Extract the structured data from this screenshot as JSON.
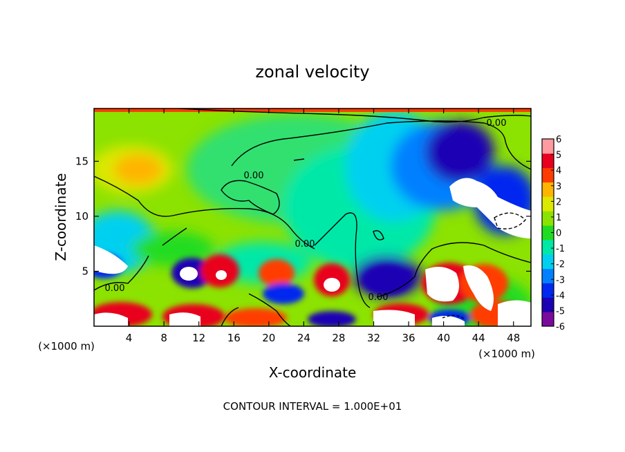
{
  "chart_data": {
    "type": "heatmap",
    "title": "zonal velocity",
    "xlabel": "X-coordinate",
    "ylabel": "Z-coordinate",
    "x_unit_left": "(×1000 m)",
    "x_unit_right": "(×1000 m)",
    "xlim": [
      0,
      50
    ],
    "ylim": [
      0,
      19.8
    ],
    "x_ticks": [
      "4",
      "8",
      "12",
      "16",
      "20",
      "24",
      "28",
      "32",
      "36",
      "40",
      "44",
      "48"
    ],
    "y_ticks": [
      "5",
      "10",
      "15"
    ],
    "colorbar": {
      "levels": [
        "-6",
        "-5",
        "-4",
        "-3",
        "-2",
        "-1",
        "0",
        "1",
        "2",
        "3",
        "4",
        "5",
        "6"
      ],
      "colors": [
        "#7a0a9e",
        "#1c00b4",
        "#0028f0",
        "#0080ff",
        "#00d0f0",
        "#00e8a8",
        "#20dc20",
        "#8ce200",
        "#dce800",
        "#ffb400",
        "#ff3c00",
        "#e8001e",
        "#ff9aa0"
      ]
    },
    "contour_labels": [
      "0.00",
      "0.00",
      "0.00",
      "0.00",
      "0.00"
    ],
    "contour_level": 0,
    "footer": "CONTOUR INTERVAL = 1.000E+01"
  }
}
